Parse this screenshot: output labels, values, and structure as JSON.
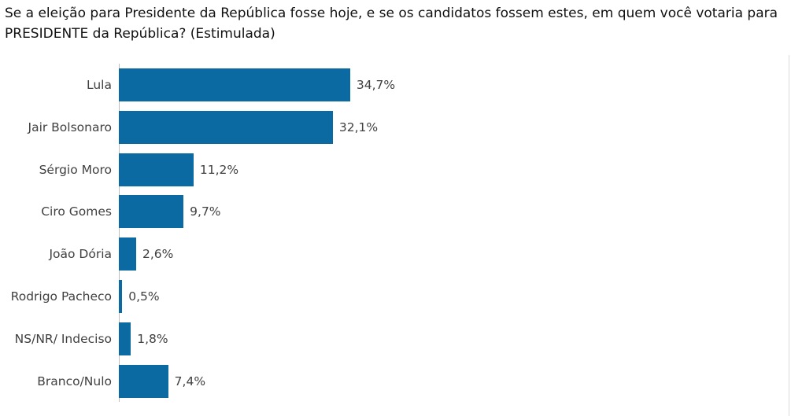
{
  "chart_data": {
    "type": "bar",
    "orientation": "horizontal",
    "title": "Se a eleição para Presidente da República fosse hoje, e se os candidatos fossem estes, em quem você votaria para PRESIDENTE da República? (Estimulada)",
    "categories": [
      "Lula",
      "Jair Bolsonaro",
      "Sérgio Moro",
      "Ciro Gomes",
      "João Dória",
      "Rodrigo Pacheco",
      "NS/NR/ Indeciso",
      "Branco/Nulo"
    ],
    "values": [
      34.7,
      32.1,
      11.2,
      9.7,
      2.6,
      0.5,
      1.8,
      7.4
    ],
    "value_labels": [
      "34,7%",
      "32,1%",
      "11,2%",
      "9,7%",
      "2,6%",
      "0,5%",
      "1,8%",
      "7,4%"
    ],
    "xlabel": "",
    "ylabel": "",
    "xlim": [
      0,
      100
    ],
    "color": "#0a6aa1",
    "grid": false,
    "legend": "none"
  }
}
